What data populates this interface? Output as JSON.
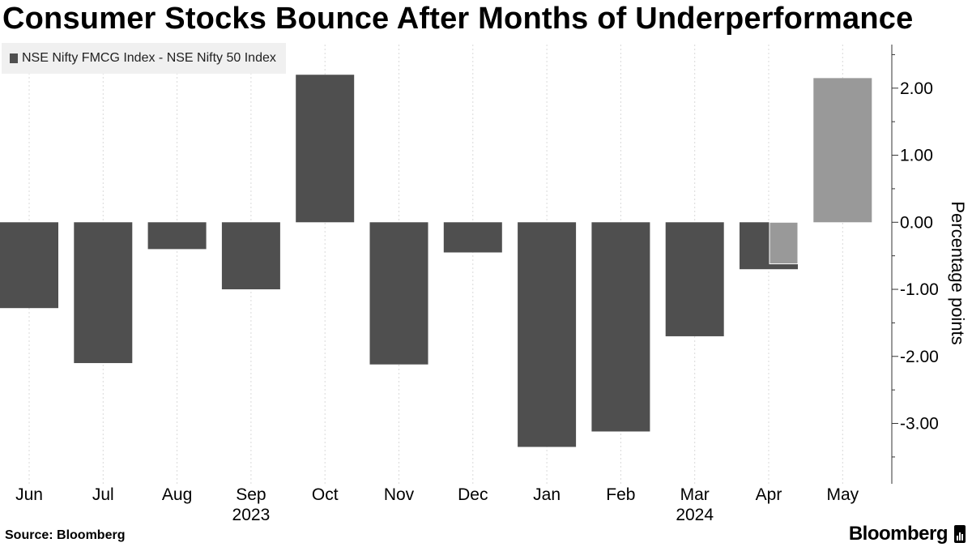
{
  "title": "Consumer Stocks Bounce After Months of Underperformance",
  "source": "Source: Bloomberg",
  "brand": "Bloomberg",
  "colors": {
    "primary": "#4f4f4f",
    "highlight": "#999999",
    "grid": "#d9d9d9"
  },
  "chart_data": {
    "type": "bar",
    "categories": [
      "Jun",
      "Jul",
      "Aug",
      "Sep",
      "Oct",
      "Nov",
      "Dec",
      "Jan",
      "Feb",
      "Mar",
      "Apr",
      "May"
    ],
    "year_labels": [
      {
        "label": "2023",
        "category": "Sep"
      },
      {
        "label": "2024",
        "category": "Mar"
      }
    ],
    "series": [
      {
        "name": "NSE Nifty FMCG Index - NSE Nifty 50 Index",
        "values": [
          -1.28,
          -2.1,
          -0.4,
          -1.0,
          2.2,
          -2.12,
          -0.45,
          -3.35,
          -3.12,
          -1.7,
          -0.7,
          null
        ]
      },
      {
        "values": [
          null,
          null,
          null,
          null,
          null,
          null,
          null,
          null,
          null,
          null,
          -0.62,
          2.15
        ]
      }
    ],
    "ylabel": "Percentage points",
    "ylim": [
      -3.9,
      2.65
    ],
    "yticks": [
      2.0,
      1.0,
      0.0,
      -1.0,
      -2.0,
      -3.0
    ],
    "ytick_labels": [
      "2.00",
      "1.00",
      "0.00",
      "-1.00",
      "-2.00",
      "-3.00"
    ],
    "axis_side": "right",
    "grid": "vertical-dashed",
    "legend_position": "top-left"
  }
}
